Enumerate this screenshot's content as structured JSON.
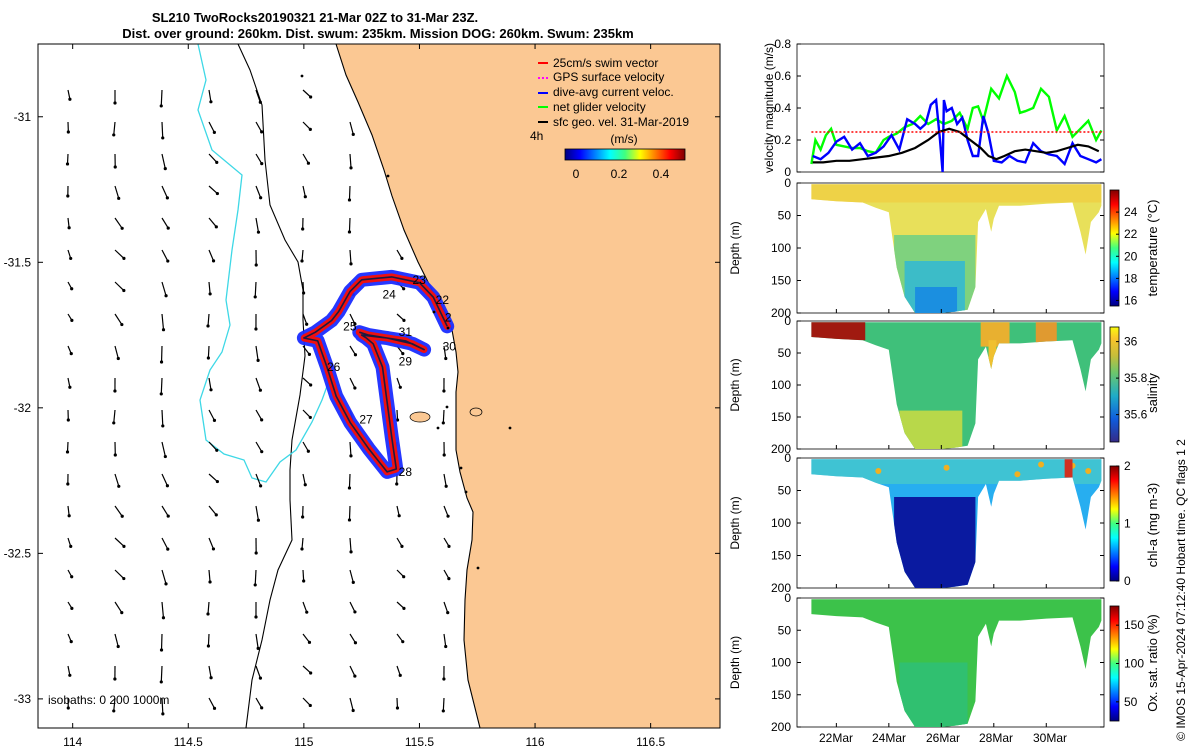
{
  "header": {
    "line1": "SL210 TwoRocks20190321 21-Mar 02Z to 31-Mar 23Z.",
    "line2": "Dist. over ground: 260km. Dist. swum: 235km. Mission DOG: 260km. Swum: 235km"
  },
  "credit": "© IMOS 15-Apr-2024 07:12:40 Hobart time. QC flags 1  2",
  "colors": {
    "land": "#fbc893",
    "coast": "#000000",
    "isobath_200": "#000000",
    "isobath_1000": "#3ed8e6",
    "swim": "#ff0000",
    "gps": "#ff00ff",
    "dac": "#0000ff",
    "net": "#00ff00",
    "geo": "#000000",
    "track_dac": "#1a2cff",
    "track_swim": "#ee1010"
  },
  "chart_data": [
    {
      "id": "map",
      "type": "scatter",
      "xlim": [
        113.85,
        116.8
      ],
      "ylim": [
        -33.1,
        -30.75
      ],
      "xticks": [
        114,
        114.5,
        115,
        115.5,
        116,
        116.5
      ],
      "yticks": [
        -31,
        -31.5,
        -32,
        -32.5,
        -33
      ],
      "xticklabels": [
        "114",
        "114.5",
        "115",
        "115.5",
        "116",
        "116.5"
      ],
      "yticklabels": [
        "-31",
        "-31.5",
        "-32",
        "-32.5",
        "-33"
      ],
      "legend": {
        "placement": "top-right",
        "entries": [
          {
            "label": "25cm/s swim vector",
            "color": "#ff0000"
          },
          {
            "label": "GPS surface velocity",
            "color": "#ff00ff"
          },
          {
            "label": "dive-avg current veloc.",
            "color": "#0000ff"
          },
          {
            "label": "net glider velocity",
            "color": "#00ff00"
          },
          {
            "label": "sfc geo. vel. 31-Mar-2019",
            "color": "#000000"
          }
        ]
      },
      "colorbar": {
        "title": "(m/s)",
        "aside": "4h",
        "ticks": [
          "0",
          "0.2",
          "0.4"
        ],
        "range": [
          0,
          0.5
        ]
      },
      "isobath_note": "isobaths: 0   200  1000m",
      "track": [
        [
          115.62,
          -31.72
        ],
        [
          115.56,
          -31.62
        ],
        [
          115.5,
          -31.57
        ],
        [
          115.38,
          -31.55
        ],
        [
          115.25,
          -31.56
        ],
        [
          115.2,
          -31.6
        ],
        [
          115.15,
          -31.67
        ],
        [
          115.12,
          -31.7
        ],
        [
          115.05,
          -31.74
        ],
        [
          115.0,
          -31.76
        ],
        [
          115.06,
          -31.77
        ],
        [
          115.1,
          -31.86
        ],
        [
          115.14,
          -31.96
        ],
        [
          115.2,
          -32.05
        ],
        [
          115.28,
          -32.14
        ],
        [
          115.36,
          -32.22
        ],
        [
          115.4,
          -32.21
        ],
        [
          115.38,
          -32.1
        ],
        [
          115.36,
          -31.98
        ],
        [
          115.34,
          -31.86
        ],
        [
          115.3,
          -31.78
        ],
        [
          115.27,
          -31.76
        ],
        [
          115.25,
          -31.75
        ],
        [
          115.36,
          -31.76
        ],
        [
          115.47,
          -31.78
        ],
        [
          115.52,
          -31.8
        ],
        [
          115.44,
          -31.77
        ],
        [
          115.36,
          -31.76
        ],
        [
          115.28,
          -31.75
        ],
        [
          115.24,
          -31.74
        ]
      ],
      "day_labels": [
        {
          "text": "2",
          "lon": 115.61,
          "lat": -31.69
        },
        {
          "text": "22",
          "lon": 115.57,
          "lat": -31.63
        },
        {
          "text": "23",
          "lon": 115.47,
          "lat": -31.56
        },
        {
          "text": "24",
          "lon": 115.34,
          "lat": -31.61
        },
        {
          "text": "25",
          "lon": 115.17,
          "lat": -31.72
        },
        {
          "text": "31",
          "lon": 115.41,
          "lat": -31.74
        },
        {
          "text": "30",
          "lon": 115.6,
          "lat": -31.79
        },
        {
          "text": "29",
          "lon": 115.41,
          "lat": -31.84
        },
        {
          "text": "26",
          "lon": 115.1,
          "lat": -31.86
        },
        {
          "text": "27",
          "lon": 115.24,
          "lat": -32.04
        },
        {
          "text": "28",
          "lon": 115.41,
          "lat": -32.22
        }
      ]
    },
    {
      "id": "velocity",
      "type": "line",
      "ylabel": "velocity magnitude (m/s)",
      "ylim": [
        0,
        0.8
      ],
      "yticks": [
        0,
        0.2,
        0.4,
        0.6,
        0.8
      ],
      "xlim": [
        20.5,
        32.2
      ],
      "series": [
        {
          "color": "#00ff00",
          "x": [
            21.05,
            21.2,
            21.4,
            21.6,
            21.8,
            22.0,
            22.3,
            22.6,
            22.9,
            23.2,
            23.5,
            23.8,
            24.0,
            24.3,
            24.6,
            24.9,
            25.2,
            25.5,
            25.8,
            26.1,
            26.4,
            26.7,
            27.0,
            27.2,
            27.4,
            27.6,
            27.9,
            28.2,
            28.5,
            28.8,
            29.0,
            29.2,
            29.5,
            29.8,
            30.1,
            30.4,
            30.7,
            31.0,
            31.3,
            31.6,
            31.9,
            32.1
          ],
          "values": [
            0.05,
            0.2,
            0.14,
            0.23,
            0.27,
            0.17,
            0.16,
            0.15,
            0.15,
            0.13,
            0.12,
            0.2,
            0.22,
            0.24,
            0.28,
            0.3,
            0.35,
            0.3,
            0.33,
            0.3,
            0.32,
            0.37,
            0.27,
            0.4,
            0.41,
            0.32,
            0.52,
            0.46,
            0.6,
            0.5,
            0.37,
            0.38,
            0.4,
            0.52,
            0.47,
            0.26,
            0.35,
            0.22,
            0.27,
            0.32,
            0.2,
            0.26
          ]
        },
        {
          "color": "#0000ff",
          "x": [
            21.1,
            21.4,
            21.7,
            22.0,
            22.3,
            22.6,
            22.9,
            23.2,
            23.5,
            23.8,
            24.1,
            24.4,
            24.7,
            25.0,
            25.2,
            25.4,
            25.6,
            25.8,
            25.95,
            26.05,
            26.1,
            26.2,
            26.4,
            26.6,
            26.8,
            27.0,
            27.2,
            27.4,
            27.6,
            27.8,
            28.0,
            28.3,
            28.6,
            28.9,
            29.2,
            29.5,
            29.8,
            30.1,
            30.4,
            30.7,
            31.0,
            31.3,
            31.6,
            31.9,
            32.1
          ],
          "values": [
            0.1,
            0.08,
            0.12,
            0.19,
            0.22,
            0.14,
            0.18,
            0.1,
            0.12,
            0.16,
            0.23,
            0.14,
            0.33,
            0.3,
            0.27,
            0.3,
            0.42,
            0.45,
            0.2,
            0.0,
            0.45,
            0.38,
            0.4,
            0.3,
            0.34,
            0.2,
            0.1,
            0.1,
            0.35,
            0.24,
            0.07,
            0.06,
            0.1,
            0.07,
            0.06,
            0.18,
            0.13,
            0.11,
            0.1,
            0.05,
            0.18,
            0.1,
            0.08,
            0.06,
            0.08
          ]
        },
        {
          "color": "#000000",
          "x": [
            21.1,
            21.5,
            22.0,
            22.5,
            23.0,
            23.5,
            24.0,
            24.5,
            25.0,
            25.5,
            25.9,
            26.3,
            26.7,
            27.1,
            27.5,
            27.8,
            28.1,
            28.4,
            28.8,
            29.2,
            29.6,
            30.0,
            30.4,
            30.8,
            31.2,
            31.6,
            32.0
          ],
          "values": [
            0.06,
            0.06,
            0.07,
            0.07,
            0.08,
            0.09,
            0.1,
            0.12,
            0.15,
            0.2,
            0.25,
            0.27,
            0.25,
            0.2,
            0.15,
            0.1,
            0.08,
            0.1,
            0.13,
            0.14,
            0.13,
            0.12,
            0.13,
            0.15,
            0.17,
            0.16,
            0.13
          ]
        },
        {
          "color": "#ff0000",
          "x": [
            21.05,
            32.2
          ],
          "values": [
            0.25,
            0.25
          ]
        }
      ]
    },
    {
      "id": "temperature",
      "type": "heatmap",
      "ylabel": "Depth (m)",
      "ylim": [
        200,
        0
      ],
      "yticks": [
        0,
        50,
        100,
        150,
        200
      ],
      "colorbar": {
        "label": "temperature (°C)",
        "range": [
          15.5,
          26
        ],
        "ticks": [
          16,
          18,
          20,
          22,
          24
        ]
      }
    },
    {
      "id": "salinity",
      "type": "heatmap",
      "ylabel": "Depth (m)",
      "ylim": [
        200,
        0
      ],
      "yticks": [
        0,
        50,
        100,
        150,
        200
      ],
      "colorbar": {
        "label": "salinity",
        "range": [
          35.45,
          36.08
        ],
        "ticks": [
          35.6,
          35.8,
          36
        ]
      }
    },
    {
      "id": "chla",
      "type": "heatmap",
      "ylabel": "Depth (m)",
      "ylim": [
        200,
        0
      ],
      "yticks": [
        0,
        50,
        100,
        150,
        200
      ],
      "colorbar": {
        "label": "chl-a (mg m-3)",
        "range": [
          0,
          2
        ],
        "ticks": [
          0,
          1,
          2
        ]
      }
    },
    {
      "id": "oxygen",
      "type": "heatmap",
      "ylabel": "Depth (m)",
      "ylim": [
        200,
        0
      ],
      "yticks": [
        0,
        50,
        100,
        150,
        200
      ],
      "xticklabels": [
        "22Mar",
        "24Mar",
        "26Mar",
        "28Mar",
        "30Mar"
      ],
      "colorbar": {
        "label": "Ox. sat. ratio (%)",
        "range": [
          25,
          175
        ],
        "ticks": [
          50,
          100,
          150
        ]
      }
    }
  ]
}
